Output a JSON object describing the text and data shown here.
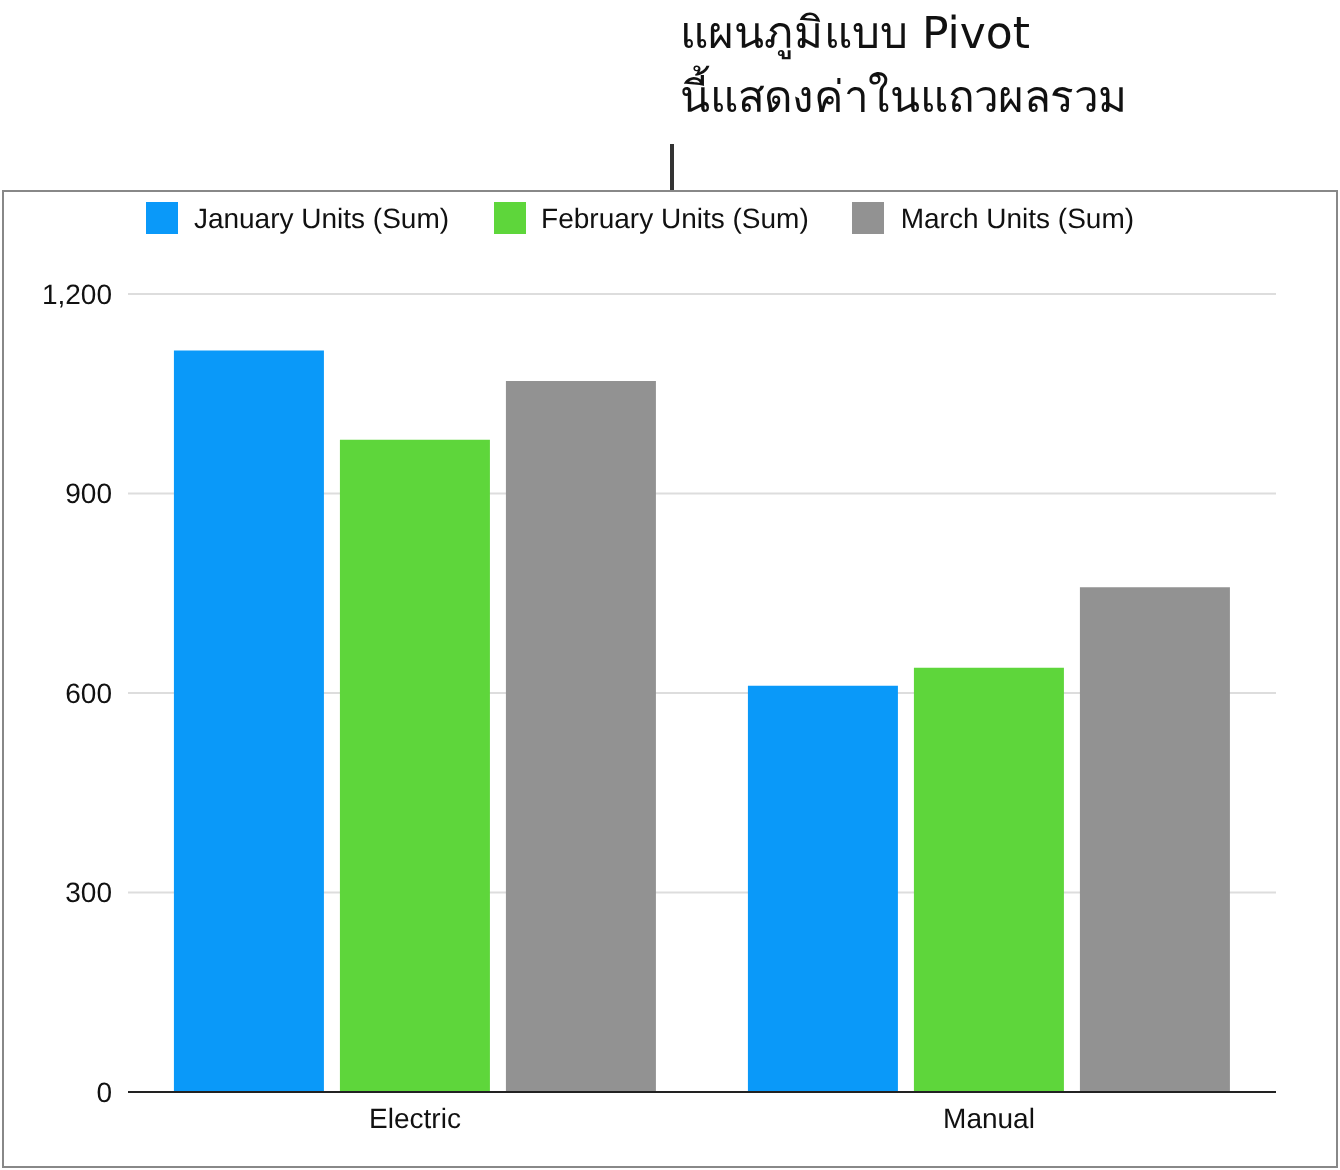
{
  "chart_data": {
    "type": "bar",
    "annotations": [
      "แผนภูมิแบบ Pivot\nนี้แสดงค่าในแถวผลรวม"
    ],
    "categories": [
      "Electric",
      "Manual"
    ],
    "series": [
      {
        "name": "January Units (Sum)",
        "color": "#0a99f9",
        "values": [
          1115,
          611
        ]
      },
      {
        "name": "February Units (Sum)",
        "color": "#5ed63b",
        "values": [
          981,
          638
        ]
      },
      {
        "name": "March Units (Sum)",
        "color": "#929292",
        "values": [
          1069,
          759
        ]
      }
    ],
    "ylim": [
      0,
      1200
    ],
    "yticks": [
      0,
      300,
      600,
      900,
      {
        "value": 1200,
        "label": "1,200"
      }
    ],
    "grid": "y",
    "legend": "top"
  }
}
